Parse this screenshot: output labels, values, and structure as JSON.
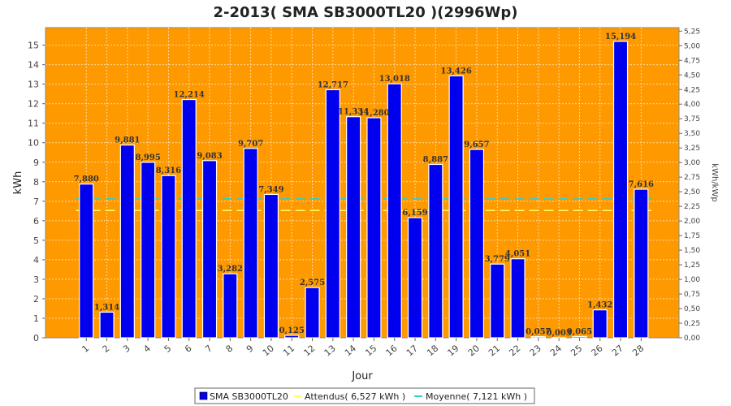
{
  "chart_data": {
    "type": "bar",
    "title": "2-2013( SMA SB3000TL20 )(2996Wp)",
    "xlabel": "Jour",
    "ylabel": "kWh",
    "y2label": "kWh/kWp",
    "ylim": [
      0,
      15.9
    ],
    "y2lim": [
      0,
      5.31
    ],
    "yticks": [
      "0",
      "1",
      "2",
      "3",
      "4",
      "5",
      "6",
      "7",
      "8",
      "9",
      "10",
      "11",
      "12",
      "13",
      "14",
      "15"
    ],
    "y2ticks": [
      "0,00",
      "0,25",
      "0,50",
      "0,75",
      "1,00",
      "1,25",
      "1,50",
      "1,75",
      "2,00",
      "2,25",
      "2,50",
      "2,75",
      "3,00",
      "3,25",
      "3,50",
      "3,75",
      "4,00",
      "4,25",
      "4,50",
      "4,75",
      "5,00",
      "5,25"
    ],
    "categories": [
      "1",
      "2",
      "3",
      "4",
      "5",
      "6",
      "7",
      "8",
      "9",
      "10",
      "11",
      "12",
      "13",
      "14",
      "15",
      "16",
      "17",
      "18",
      "19",
      "20",
      "21",
      "22",
      "23",
      "24",
      "25",
      "26",
      "27",
      "28"
    ],
    "series": [
      {
        "name": "SMA SB3000TL20",
        "values": [
          7.88,
          1.314,
          9.881,
          8.995,
          8.316,
          12.214,
          9.083,
          3.282,
          9.707,
          7.349,
          0.125,
          2.575,
          12.717,
          11.334,
          11.28,
          13.018,
          6.159,
          8.887,
          13.426,
          9.657,
          3.779,
          4.051,
          0.057,
          0.003,
          0.065,
          1.432,
          15.194,
          7.616
        ],
        "labels": [
          "7,880",
          "1,314",
          "9,881",
          "8,995",
          "8,316",
          "12,214",
          "9,083",
          "3,282",
          "9,707",
          "7,349",
          "0,125",
          "2,575",
          "12,717",
          "11,334",
          "11,280",
          "13,018",
          "6,159",
          "8,887",
          "13,426",
          "9,657",
          "3,779",
          "4,051",
          "0,057",
          "0,003",
          "0,065",
          "1,432",
          "15,194",
          "7,616"
        ],
        "color": "#0000ee"
      }
    ],
    "reference_lines": [
      {
        "name": "Attendus( 6,527 kWh )",
        "value": 6.527,
        "color": "#ffff66",
        "style": "dashed"
      },
      {
        "name": "Moyenne( 7,121 kWh )",
        "value": 7.121,
        "color": "#33cccc",
        "style": "dashed"
      }
    ],
    "colors": {
      "plot_background": "#ff9900",
      "grid": "#ffd9a0"
    },
    "grid": true,
    "legend_position": "bottom"
  }
}
